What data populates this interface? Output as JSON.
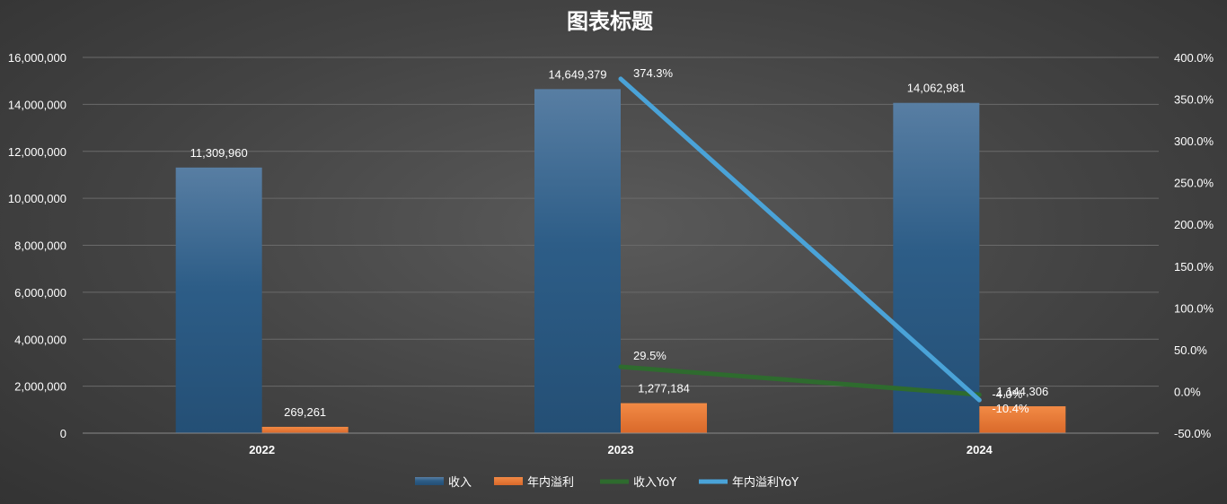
{
  "chart_data": {
    "type": "bar",
    "title": "图表标题",
    "categories": [
      "2022",
      "2023",
      "2024"
    ],
    "y_left": {
      "min": 0,
      "max": 16000000,
      "step": 2000000,
      "tick_labels": [
        "0",
        "2,000,000",
        "4,000,000",
        "6,000,000",
        "8,000,000",
        "10,000,000",
        "12,000,000",
        "14,000,000",
        "16,000,000"
      ]
    },
    "y_right": {
      "min": -50,
      "max": 400,
      "step": 50,
      "tick_labels": [
        "-50.0%",
        "0.0%",
        "50.0%",
        "100.0%",
        "150.0%",
        "200.0%",
        "250.0%",
        "300.0%",
        "350.0%",
        "400.0%"
      ]
    },
    "grid": true,
    "legend_position": "bottom",
    "series": [
      {
        "name": "收入",
        "type": "bar",
        "axis": "left",
        "color": "#2E5E8A",
        "values": [
          11309960,
          14649379,
          14062981
        ],
        "labels": [
          "11,309,960",
          "14,649,379",
          "14,062,981"
        ]
      },
      {
        "name": "年内溢利",
        "type": "bar",
        "axis": "left",
        "color": "#ED7D31",
        "values": [
          269261,
          1277184,
          1144306
        ],
        "labels": [
          "269,261",
          "1,277,184",
          "1,144,306"
        ]
      },
      {
        "name": "收入YoY",
        "type": "line",
        "axis": "right",
        "color": "#2E6B2E",
        "values": [
          null,
          29.5,
          -4.0
        ],
        "labels": [
          "",
          "29.5%",
          "-4.0%"
        ]
      },
      {
        "name": "年内溢利YoY",
        "type": "line",
        "axis": "right",
        "color": "#4AA3D8",
        "values": [
          null,
          374.3,
          -10.4
        ],
        "labels": [
          "",
          "374.3%",
          "-10.4%"
        ]
      }
    ]
  }
}
